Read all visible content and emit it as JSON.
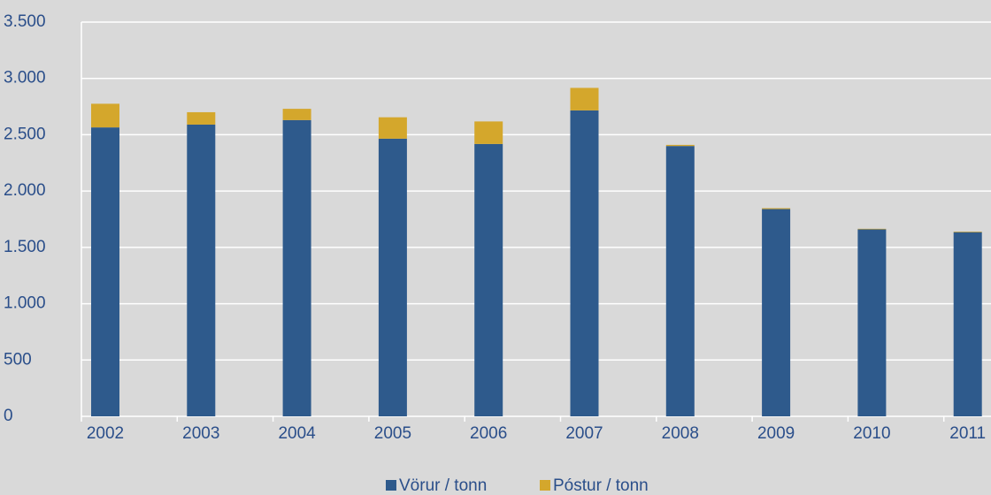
{
  "chart_data": {
    "type": "stacked-bar",
    "categories": [
      "2002",
      "2003",
      "2004",
      "2005",
      "2006",
      "2007",
      "2008",
      "2009",
      "2010",
      "2011"
    ],
    "series": [
      {
        "name": "Vörur / tonn",
        "color": "#2e5a8c",
        "values": [
          2565,
          2590,
          2630,
          2465,
          2418,
          2716,
          2400,
          1840,
          1660,
          1635
        ]
      },
      {
        "name": "Póstur / tonn",
        "color": "#d4a72c",
        "values": [
          210,
          110,
          100,
          190,
          200,
          200,
          10,
          8,
          5,
          5
        ]
      }
    ],
    "ylim": [
      0,
      3500
    ],
    "yticks": [
      0,
      500,
      {
        "value": 1000,
        "label": "1.000"
      },
      {
        "value": 1500,
        "label": "1.500"
      },
      {
        "value": 2000,
        "label": "2.000"
      },
      {
        "value": 2500,
        "label": "2.500"
      },
      {
        "value": 3000,
        "label": "3.000"
      },
      {
        "value": 3500,
        "label": "3.500"
      }
    ],
    "grid": true,
    "legend": "bottom"
  }
}
